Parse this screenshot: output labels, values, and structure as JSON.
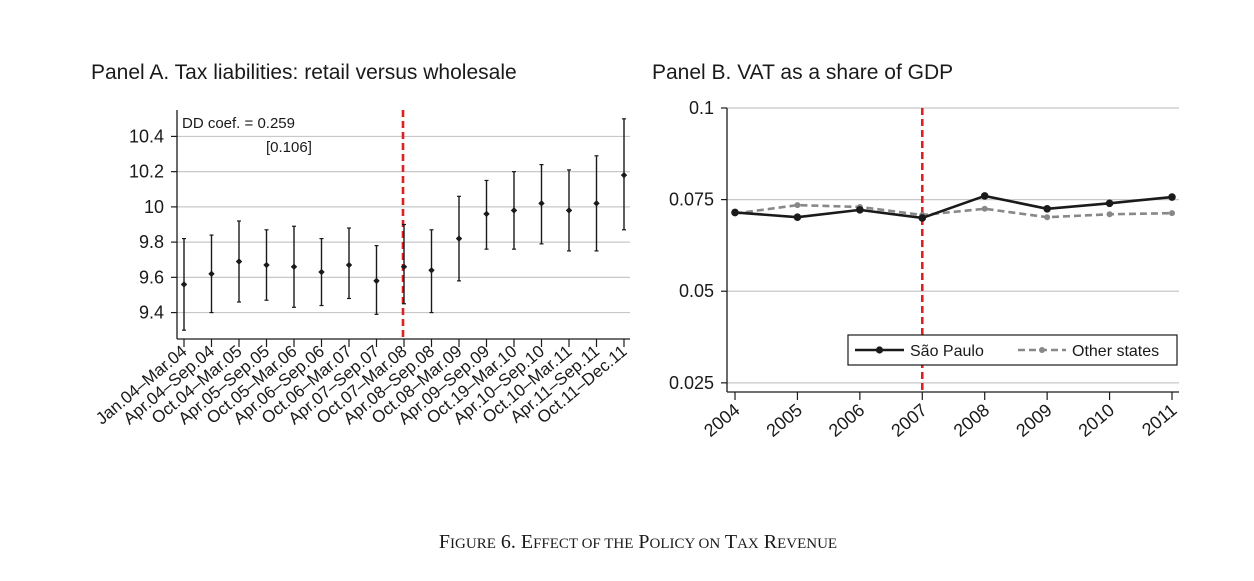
{
  "figure_caption": {
    "text": "Figure 6. Effect of the Policy on Tax Revenue",
    "parts": [
      {
        "big": "F",
        "small": "IGURE"
      },
      {
        "big": "6. E",
        "small": "FFECT"
      },
      {
        "big": "",
        "small": "OF THE"
      },
      {
        "big": "P",
        "small": "OLICY"
      },
      {
        "big": "",
        "small": "ON"
      },
      {
        "big": "T",
        "small": "AX"
      },
      {
        "big": "R",
        "small": "EVENUE"
      }
    ]
  },
  "chart_data": [
    {
      "type": "scatter",
      "title": "Panel A. Tax liabilities: retail versus wholesale",
      "xlabel": "",
      "ylabel": "",
      "annotation": {
        "line1": "DD coef. = 0.259",
        "line2": "[0.106]"
      },
      "categories": [
        "Jan.04–Mar.04",
        "Apr.04–Sep.04",
        "Oct.04–Mar.05",
        "Apr.05–Sep.05",
        "Oct.05–Mar.06",
        "Apr.06–Sep.06",
        "Oct.06–Mar.07",
        "Apr.07–Sep.07",
        "Oct.07–Mar.08",
        "Apr.08–Sep.08",
        "Oct.08–Mar.09",
        "Apr.09–Sep.09",
        "Oct.19–Mar.10",
        "Apr.10–Sep.10",
        "Oct.10–Mar.11",
        "Apr.11–Sep.11",
        "Oct.11–Dec.11"
      ],
      "values": [
        9.56,
        9.62,
        9.69,
        9.67,
        9.66,
        9.63,
        9.67,
        9.58,
        9.66,
        9.64,
        9.82,
        9.96,
        9.98,
        10.02,
        9.98,
        10.02,
        10.18
      ],
      "ci_low": [
        9.3,
        9.4,
        9.46,
        9.47,
        9.43,
        9.44,
        9.48,
        9.39,
        9.45,
        9.4,
        9.58,
        9.76,
        9.76,
        9.79,
        9.75,
        9.75,
        9.87
      ],
      "ci_high": [
        9.82,
        9.84,
        9.92,
        9.87,
        9.89,
        9.82,
        9.88,
        9.78,
        9.9,
        9.87,
        10.06,
        10.15,
        10.2,
        10.24,
        10.21,
        10.29,
        10.5
      ],
      "y_ticks": [
        9.4,
        9.6,
        9.8,
        10,
        10.2,
        10.4
      ],
      "y_tick_labels": [
        "9.4",
        "9.6",
        "9.8",
        "10",
        "10.2",
        "10.4"
      ],
      "ylim": [
        9.25,
        10.55
      ],
      "policy_line_after_index": 8,
      "grid": true,
      "colors": {
        "markers": "#1a1a1a",
        "policy_line": "#e02020",
        "grid": "#c8c8c8"
      }
    },
    {
      "type": "line",
      "title": "Panel B. VAT as a share of GDP",
      "xlabel": "",
      "ylabel": "",
      "x": [
        "2004",
        "2005",
        "2006",
        "2007",
        "2008",
        "2009",
        "2010",
        "2011"
      ],
      "series": [
        {
          "name": "São Paulo",
          "values": [
            0.0715,
            0.0702,
            0.0722,
            0.07,
            0.076,
            0.0725,
            0.074,
            0.0757
          ],
          "color": "#1a1a1a",
          "dash": "solid"
        },
        {
          "name": "Other states",
          "values": [
            0.0712,
            0.0735,
            0.073,
            0.0708,
            0.0725,
            0.0702,
            0.071,
            0.0713
          ],
          "color": "#888888",
          "dash": "dashed"
        }
      ],
      "y_ticks": [
        0.025,
        0.05,
        0.075,
        0.1
      ],
      "y_tick_labels": [
        "0.025",
        "0.05",
        "0.075",
        "0.1"
      ],
      "ylim": [
        0.0225,
        0.1
      ],
      "policy_line_x": "2007",
      "legend_position": "bottom-right",
      "grid": true,
      "colors": {
        "policy_line": "#e02020",
        "grid": "#c8c8c8"
      }
    }
  ]
}
